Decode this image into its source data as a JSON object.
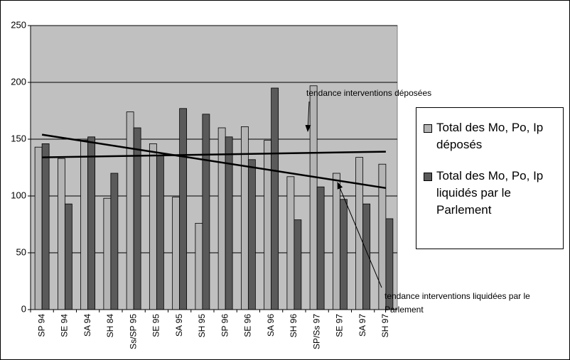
{
  "chart_data": {
    "type": "bar",
    "categories": [
      "SP 94",
      "SE 94",
      "SA 94",
      "SH 84",
      "Ss/SP 95",
      "SE 95",
      "SA 95",
      "SH 95",
      "SP 96",
      "SE 96",
      "SA 96",
      "SH 96",
      "SP/Ss 97",
      "SE 97",
      "SA 97",
      "SH 97"
    ],
    "series": [
      {
        "name": "Total des Mo, Po, Ip déposés",
        "color": "#b4b4b4",
        "values": [
          143,
          133,
          149,
          98,
          174,
          146,
          99,
          76,
          160,
          161,
          149,
          117,
          197,
          120,
          134,
          128
        ]
      },
      {
        "name": "Total des Mo, Po, Ip liquidés par le Parlement",
        "color": "#5a5a5a",
        "values": [
          146,
          93,
          152,
          120,
          160,
          136,
          177,
          172,
          152,
          132,
          195,
          79,
          108,
          97,
          93,
          80
        ]
      }
    ],
    "trendlines": [
      {
        "label": "tendance interventions déposées",
        "start": 134,
        "end": 139
      },
      {
        "label": "tendance interventions liquidées par le Parlement",
        "start": 154,
        "end": 107
      }
    ],
    "ylim": [
      0,
      250
    ],
    "yticks": [
      0,
      50,
      100,
      150,
      200,
      250
    ],
    "grid": true,
    "legend": "right"
  }
}
